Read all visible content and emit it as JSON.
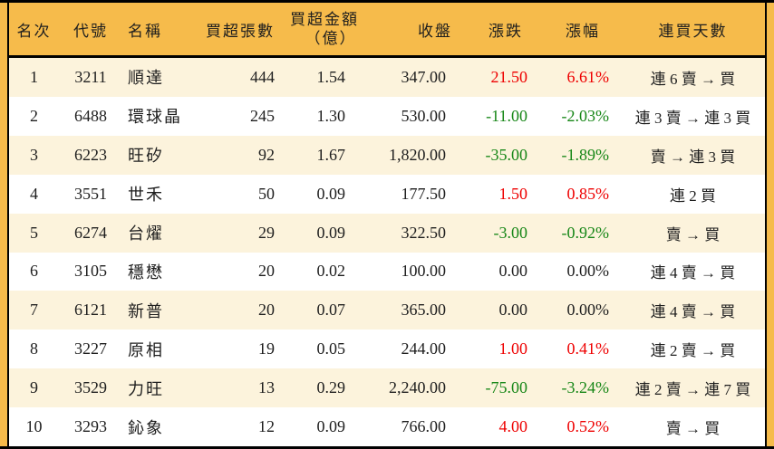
{
  "colors": {
    "page_bg": "#F6BB4B",
    "header_bg": "#F6BB4B",
    "stripe_bg": "#FCF3DC",
    "row_bg": "#FFFFFF",
    "border": "#000000",
    "text": "#1E1E1E",
    "up": "#EE0000",
    "down": "#178717"
  },
  "chart_data": {
    "type": "table",
    "columns": [
      {
        "id": "rank",
        "label": "名次"
      },
      {
        "id": "code",
        "label": "代號"
      },
      {
        "id": "name",
        "label": "名稱"
      },
      {
        "id": "volume",
        "label": "買超張數"
      },
      {
        "id": "amount",
        "label": "買超金額",
        "sublabel": "（億）"
      },
      {
        "id": "close",
        "label": "收盤"
      },
      {
        "id": "change",
        "label": "漲跌"
      },
      {
        "id": "pct",
        "label": "漲幅"
      },
      {
        "id": "streak",
        "label": "連買天數"
      }
    ],
    "rows": [
      {
        "rank": "1",
        "code": "3211",
        "name": "順達",
        "volume": "444",
        "amount": "1.54",
        "close": "347.00",
        "change": "21.50",
        "pct": "6.61%",
        "streak": "連 6 賣 → 買",
        "trend": "up"
      },
      {
        "rank": "2",
        "code": "6488",
        "name": "環球晶",
        "volume": "245",
        "amount": "1.30",
        "close": "530.00",
        "change": "-11.00",
        "pct": "-2.03%",
        "streak": "連 3 賣 → 連 3 買",
        "trend": "down"
      },
      {
        "rank": "3",
        "code": "6223",
        "name": "旺矽",
        "volume": "92",
        "amount": "1.67",
        "close": "1,820.00",
        "change": "-35.00",
        "pct": "-1.89%",
        "streak": "賣 → 連 3 買",
        "trend": "down"
      },
      {
        "rank": "4",
        "code": "3551",
        "name": "世禾",
        "volume": "50",
        "amount": "0.09",
        "close": "177.50",
        "change": "1.50",
        "pct": "0.85%",
        "streak": "連 2 買",
        "trend": "up"
      },
      {
        "rank": "5",
        "code": "6274",
        "name": "台燿",
        "volume": "29",
        "amount": "0.09",
        "close": "322.50",
        "change": "-3.00",
        "pct": "-0.92%",
        "streak": "賣 → 買",
        "trend": "down"
      },
      {
        "rank": "6",
        "code": "3105",
        "name": "穩懋",
        "volume": "20",
        "amount": "0.02",
        "close": "100.00",
        "change": "0.00",
        "pct": "0.00%",
        "streak": "連 4 賣 → 買",
        "trend": "flat"
      },
      {
        "rank": "7",
        "code": "6121",
        "name": "新普",
        "volume": "20",
        "amount": "0.07",
        "close": "365.00",
        "change": "0.00",
        "pct": "0.00%",
        "streak": "連 4 賣 → 買",
        "trend": "flat"
      },
      {
        "rank": "8",
        "code": "3227",
        "name": "原相",
        "volume": "19",
        "amount": "0.05",
        "close": "244.00",
        "change": "1.00",
        "pct": "0.41%",
        "streak": "連 2 賣 → 買",
        "trend": "up"
      },
      {
        "rank": "9",
        "code": "3529",
        "name": "力旺",
        "volume": "13",
        "amount": "0.29",
        "close": "2,240.00",
        "change": "-75.00",
        "pct": "-3.24%",
        "streak": "連 2 賣 → 連 7 買",
        "trend": "down"
      },
      {
        "rank": "10",
        "code": "3293",
        "name": "鈊象",
        "volume": "12",
        "amount": "0.09",
        "close": "766.00",
        "change": "4.00",
        "pct": "0.52%",
        "streak": "賣 → 買",
        "trend": "up"
      }
    ]
  }
}
